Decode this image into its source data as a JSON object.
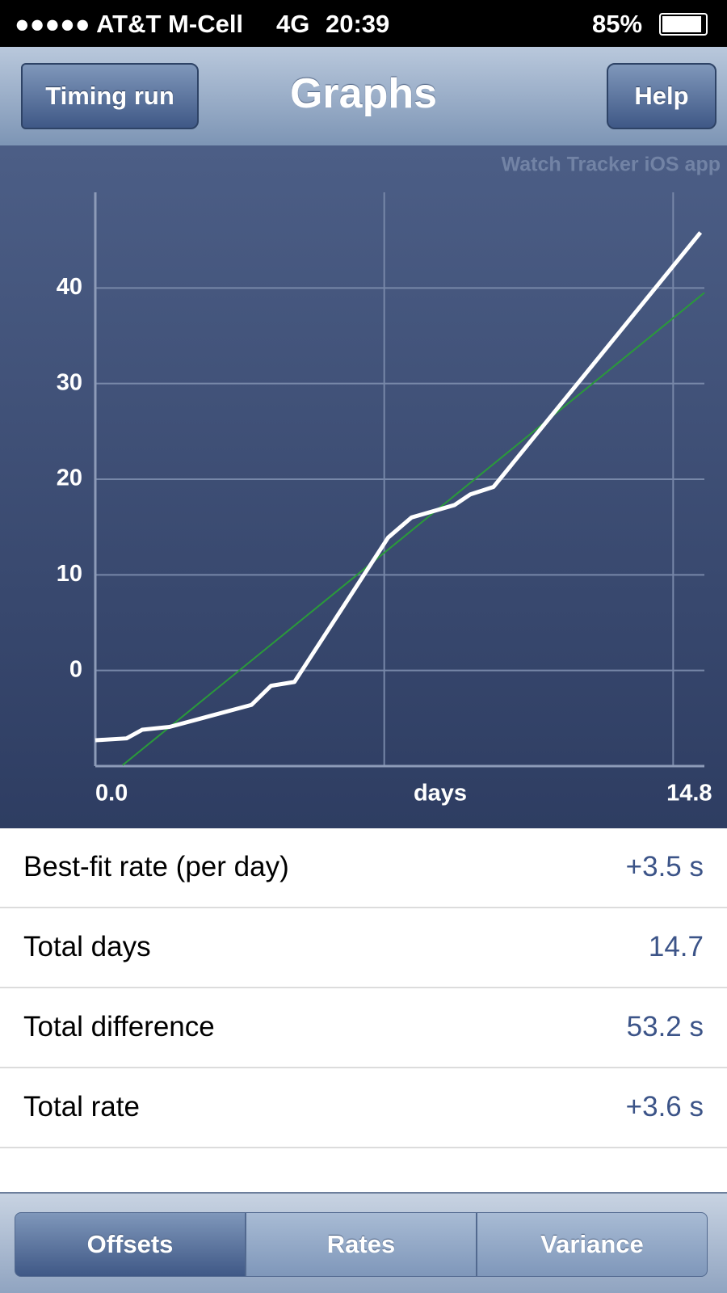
{
  "status_bar": {
    "carrier": "●●●●● AT&T M-Cell",
    "network": "4G",
    "time": "20:39",
    "battery": "85%"
  },
  "nav": {
    "back": "Timing run",
    "title": "Graphs",
    "action": "Help"
  },
  "chart_data": {
    "type": "line",
    "watermark": "Watch Tracker iOS app",
    "x_label": "days",
    "xlim": [
      0,
      15.6
    ],
    "xticks": [
      {
        "value": 0,
        "label": "0.0"
      },
      {
        "value": 7.4,
        "label": null
      },
      14.8
    ],
    "ylim": [
      -10,
      50
    ],
    "yticks": [
      0,
      10,
      20,
      30,
      40
    ],
    "grid": true,
    "series": [
      {
        "color": "#ffffff",
        "x": [
          0,
          0.8,
          1.2,
          1.9,
          4.0,
          4.5,
          5.1,
          7.5,
          8.1,
          9.2,
          9.6,
          10.2,
          15.5
        ],
        "values": [
          -7.3,
          -7.1,
          -6.2,
          -5.9,
          -3.6,
          -1.6,
          -1.2,
          13.9,
          16.0,
          17.3,
          18.4,
          19.2,
          45.8
        ]
      },
      {
        "color": "#2a9a3a",
        "x": [
          0.7,
          15.6
        ],
        "values": [
          -9.9,
          39.5
        ]
      }
    ]
  },
  "stats": [
    {
      "label": "Best-fit rate (per day)",
      "value": "+3.5 s"
    },
    {
      "label": "Total days",
      "value": "14.7"
    },
    {
      "label": "Total difference",
      "value": "53.2 s"
    },
    {
      "label": "Total rate",
      "value": "+3.6 s"
    }
  ],
  "tabs": [
    "Offsets",
    "Rates",
    "Variance"
  ]
}
